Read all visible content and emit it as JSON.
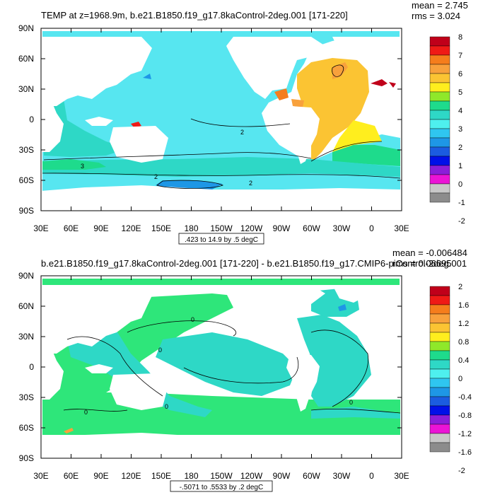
{
  "panels": [
    {
      "title": "TEMP at z=1968.9m, b.e21.B1850.f19_g17.8kaControl-2deg.001 [171-220]",
      "stats": [
        "mean = 2.745",
        "rms = 3.024"
      ],
      "range_label": ".423 to 14.9 by .5 degC",
      "contour_labels": [
        "3",
        "2",
        "2",
        "2"
      ],
      "ocean_base": "#57E6F0",
      "colorbar": {
        "labels": [
          "8",
          "7",
          "6",
          "5",
          "4",
          "3",
          "2",
          "1",
          "0",
          "-1",
          "-2"
        ],
        "colors": [
          "#C0001A",
          "#EF1A16",
          "#F57D1C",
          "#F8A13C",
          "#FBC433",
          "#FFEE1E",
          "#8FE82A",
          "#1EDB8C",
          "#2ED8C6",
          "#4EF0EE",
          "#2FC6F0",
          "#1E97E6",
          "#1B5CE0",
          "#0010E8",
          "#8B1ED9",
          "#EB14D6",
          "#C8C8C8",
          "#8C8C8C"
        ]
      }
    },
    {
      "title": "b.e21.B1850.f19_g17.8kaControl-2deg.001 [171-220] - b.e21.B1850.f19_g17.CMIP6-piControl-2deg.001",
      "stats": [
        "mean = -0.006484",
        "rms = 0.06695"
      ],
      "range_label": "-.5071 to .5533 by .2 degC",
      "contour_labels": [
        "0",
        "0",
        "0",
        "0",
        "0"
      ],
      "ocean_base": "#2EE67A",
      "colorbar": {
        "labels": [
          "2",
          "1.6",
          "1.2",
          "0.8",
          "0.4",
          "0",
          "-0.4",
          "-0.8",
          "-1.2",
          "-1.6",
          "-2"
        ],
        "colors": [
          "#C0001A",
          "#EF1A16",
          "#F57D1C",
          "#F8A13C",
          "#FBC433",
          "#FFEE1E",
          "#8FE82A",
          "#1EDB8C",
          "#2ED8C6",
          "#4EF0EE",
          "#2FC6F0",
          "#1E97E6",
          "#1B5CE0",
          "#0010E8",
          "#8B1ED9",
          "#EB14D6",
          "#C8C8C8",
          "#8C8C8C"
        ]
      }
    }
  ],
  "chart_data": [
    {
      "type": "heatmap",
      "title": "TEMP at z=1968.9m, b.e21.B1850.f19_g17.8kaControl-2deg.001 [171-220]",
      "x_ticks": [
        "30E",
        "60E",
        "90E",
        "120E",
        "150E",
        "180",
        "150W",
        "120W",
        "90W",
        "60W",
        "30W",
        "0",
        "30E"
      ],
      "y_ticks": [
        "90N",
        "60N",
        "30N",
        "0",
        "30S",
        "60S",
        "90S"
      ],
      "xlim": [
        30,
        390
      ],
      "ylim": [
        -90,
        90
      ],
      "value_range": [
        0.423,
        14.9
      ],
      "contour_interval": 0.5,
      "units": "degC",
      "colorbar_levels": [
        8,
        7,
        6,
        5,
        4,
        3,
        2,
        1,
        0,
        -1,
        -2
      ],
      "mean": 2.745,
      "rms": 3.024
    },
    {
      "type": "heatmap",
      "title": "b.e21.B1850.f19_g17.8kaControl-2deg.001 [171-220] - b.e21.B1850.f19_g17.CMIP6-piControl-2deg.001",
      "x_ticks": [
        "30E",
        "60E",
        "90E",
        "120E",
        "150E",
        "180",
        "150W",
        "120W",
        "90W",
        "60W",
        "30W",
        "0",
        "30E"
      ],
      "y_ticks": [
        "90N",
        "60N",
        "30N",
        "0",
        "30S",
        "60S",
        "90S"
      ],
      "xlim": [
        30,
        390
      ],
      "ylim": [
        -90,
        90
      ],
      "value_range": [
        -0.5071,
        0.5533
      ],
      "contour_interval": 0.2,
      "units": "degC",
      "colorbar_levels": [
        2,
        1.6,
        1.2,
        0.8,
        0.4,
        0,
        -0.4,
        -0.8,
        -1.2,
        -1.6,
        -2
      ],
      "mean": -0.006484,
      "rms": 0.06695
    }
  ]
}
